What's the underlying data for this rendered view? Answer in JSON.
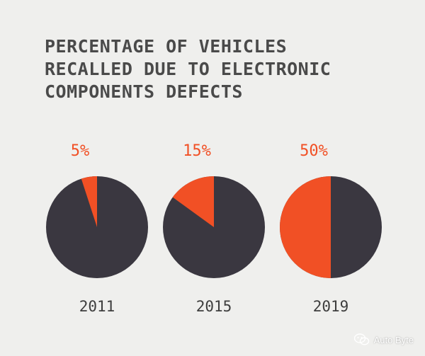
{
  "chart_data": {
    "type": "pie",
    "title_lines": [
      "PERCENTAGE OF VEHICLES",
      "RECALLED DUE TO ELECTRONIC",
      "COMPONENTS DEFECTS"
    ],
    "pies": [
      {
        "year": "2011",
        "label": "5%",
        "value": 5
      },
      {
        "year": "2015",
        "label": "15%",
        "value": 15
      },
      {
        "year": "2019",
        "label": "50%",
        "value": 50
      }
    ],
    "colors": {
      "highlight": "#f15025",
      "rest": "#3a3740"
    }
  },
  "watermark": {
    "text": "Auto Byte",
    "icon": "wechat-icon"
  }
}
